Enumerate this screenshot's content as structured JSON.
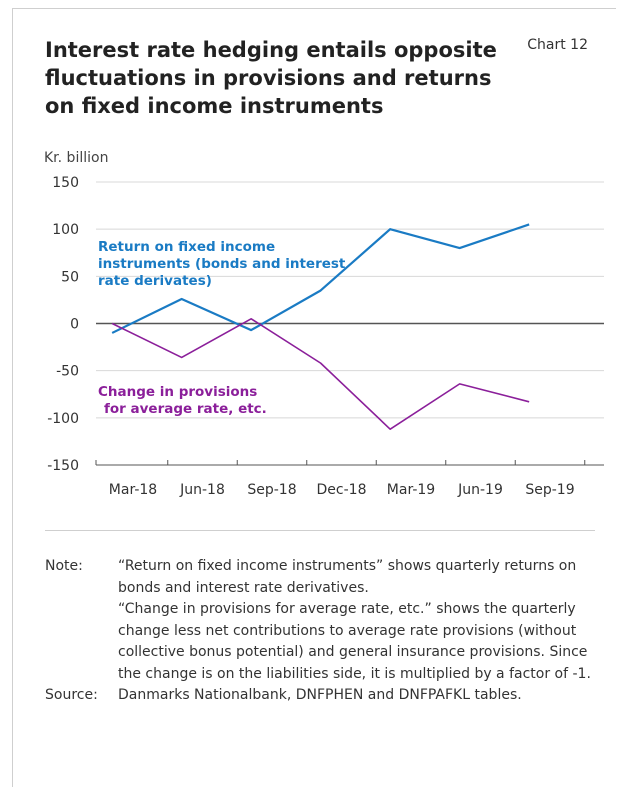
{
  "chart_title": "Interest rate hedging entails opposite fluctuations in provisions and returns on fixed income instruments",
  "chart_number": "Chart 12",
  "colors": {
    "series_blue": "#1a7bc4",
    "series_purple": "#8b1f9a",
    "grid": "#d8d8d8",
    "zero_line": "#555555"
  },
  "chart_data": {
    "type": "line",
    "title": "Interest rate hedging entails opposite fluctuations in provisions and returns on fixed income instruments",
    "ylabel": "Kr. billion",
    "xlabel": "",
    "ylim": [
      -150,
      150
    ],
    "yticks": [
      150,
      100,
      50,
      0,
      -50,
      -100,
      -150
    ],
    "ytick_labels": [
      "150",
      "100",
      "50",
      "0",
      "-50",
      "-100",
      "-150"
    ],
    "grid": true,
    "categories": [
      "Mar-18",
      "Jun-18",
      "Sep-18",
      "Dec-18",
      "Mar-19",
      "Jun-19",
      "Sep-19"
    ],
    "x_positions": [
      0,
      1,
      2,
      3,
      4,
      5,
      6
    ],
    "series": [
      {
        "name": "Return on fixed income instruments (bonds and interest rate derivates)",
        "label_lines": [
          "Return on fixed income",
          "instruments (bonds and interest",
          "rate derivates)"
        ],
        "color": "#1a7bc4",
        "x": [
          -0.3,
          0.7,
          1.7,
          2.7,
          3.7,
          4.7,
          5.7
        ],
        "values": [
          -10,
          26,
          -7,
          35,
          100,
          80,
          105
        ]
      },
      {
        "name": "Change in provisions for average rate, etc.",
        "label_lines": [
          "Change in provisions",
          "for average rate, etc."
        ],
        "color": "#8b1f9a",
        "x": [
          -0.3,
          0.7,
          1.7,
          2.7,
          3.7,
          4.7,
          5.7
        ],
        "values": [
          0,
          -36,
          5,
          -42,
          -112,
          -64,
          -83
        ]
      }
    ]
  },
  "notes": {
    "note_label": "Note:",
    "note_lines": [
      "“Return on fixed income instruments” shows quarterly returns on bonds and interest rate derivatives.",
      "“Change in provisions for average rate, etc.” shows the quarterly change less net contributions to average rate provisions (without collective bonus potential) and general insurance provisions. Since the change is on the liabilities side, it is multiplied by a factor of -1."
    ],
    "source_label": "Source:",
    "source_text": "Danmarks Nationalbank, DNFPHEN and DNFPAFKL tables."
  }
}
